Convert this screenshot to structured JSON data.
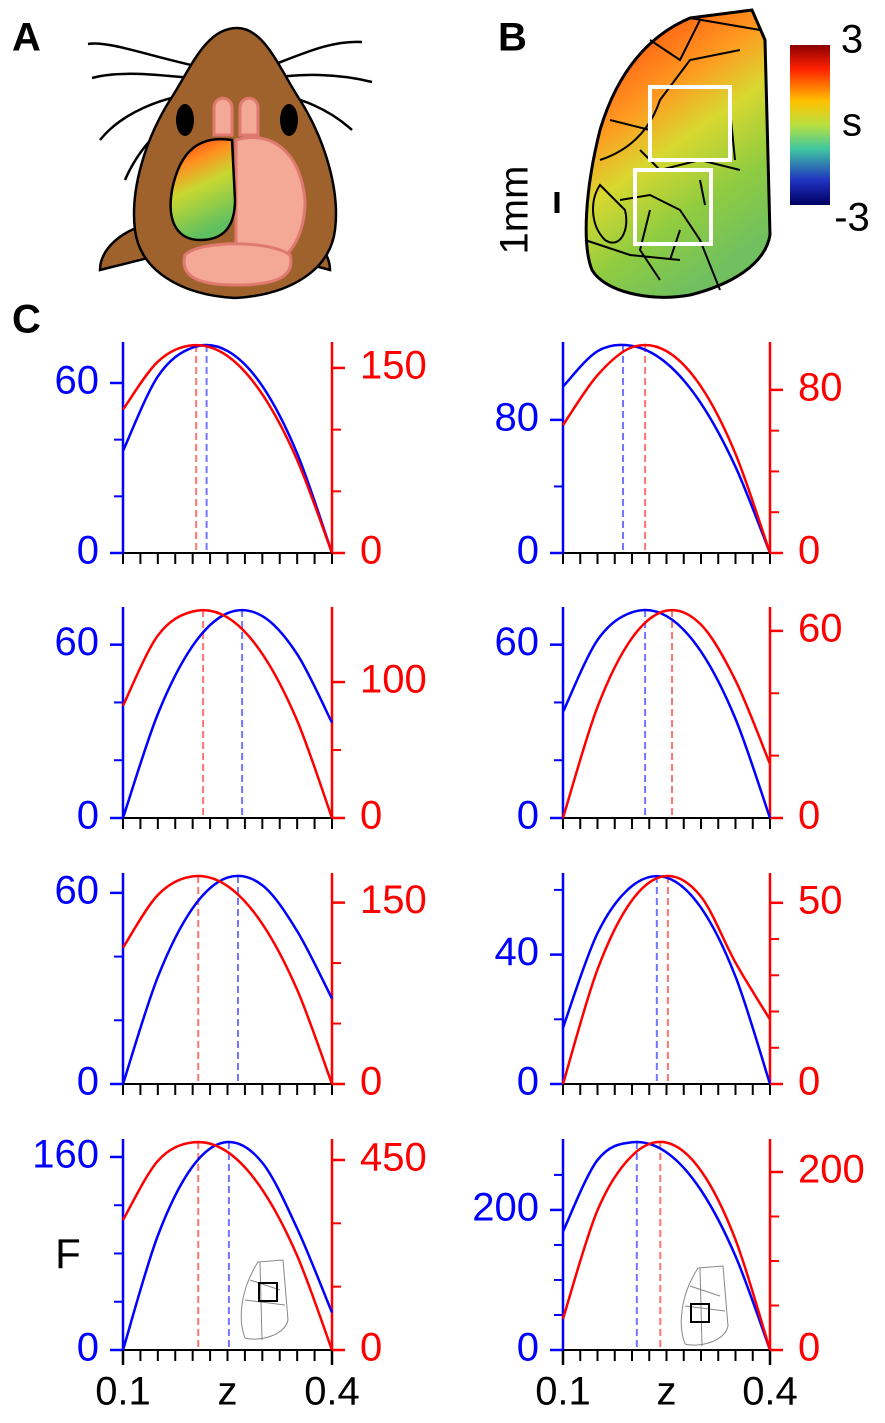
{
  "panel_labels": [
    "A",
    "B",
    "C"
  ],
  "colorbar": {
    "ticks": [
      3,
      -3
    ],
    "label": "s"
  },
  "scale_bar": "1mm",
  "inset_label": "F",
  "chart_data": [
    {
      "type": "line",
      "x": [
        0.1,
        0.15,
        0.2,
        0.25,
        0.3,
        0.35,
        0.4
      ],
      "xlim": [
        0.1,
        0.4
      ],
      "xminorticks": [
        0.1,
        0.125,
        0.15,
        0.175,
        0.2,
        0.225,
        0.25,
        0.275,
        0.3,
        0.325,
        0.35,
        0.375,
        0.4
      ],
      "ylim": [
        0,
        73.4
      ],
      "yticks": [
        0,
        60
      ],
      "yminorticks": [
        20,
        40
      ],
      "y2lim": [
        0,
        168.6
      ],
      "y2ticks": [
        0,
        150
      ],
      "y2minorticks": [
        50,
        100
      ],
      "series": [
        {
          "color": "#0000ff",
          "values": [
            36,
            62.3,
            72.5,
            71.3,
            58.9,
            35.1,
            0
          ],
          "peak_x": 0.22
        },
        {
          "color": "#ff0000",
          "axis": "y2",
          "values": [
            116.3,
            155.1,
            168.4,
            159.7,
            128.6,
            75.4,
            0
          ],
          "peak_x": 0.205
        }
      ]
    },
    {
      "type": "line",
      "x": [
        0.1,
        0.15,
        0.2,
        0.25,
        0.3,
        0.35,
        0.4
      ],
      "xlim": [
        0.1,
        0.4
      ],
      "xminorticks": [
        0.1,
        0.125,
        0.15,
        0.175,
        0.2,
        0.225,
        0.25,
        0.275,
        0.3,
        0.325,
        0.35,
        0.375,
        0.4
      ],
      "ylim": [
        0,
        125
      ],
      "yticks": [
        0,
        80
      ],
      "yminorticks": [
        40
      ],
      "y2lim": [
        0,
        102
      ],
      "y2ticks": [
        0,
        80
      ],
      "y2minorticks": [
        20,
        40,
        60
      ],
      "series": [
        {
          "color": "#0000ff",
          "values": [
            100,
            121.3,
            124.5,
            114.1,
            89.9,
            51.8,
            0
          ],
          "peak_x": 0.187
        },
        {
          "color": "#ff0000",
          "axis": "y2",
          "values": [
            62.7,
            87.2,
            100.9,
            99,
            81.6,
            48.6,
            0
          ],
          "peak_x": 0.219
        }
      ]
    },
    {
      "type": "line",
      "x": [
        0.1,
        0.15,
        0.2,
        0.25,
        0.3,
        0.35,
        0.4
      ],
      "xlim": [
        0.1,
        0.4
      ],
      "xminorticks": [
        0.1,
        0.125,
        0.15,
        0.175,
        0.2,
        0.225,
        0.25,
        0.275,
        0.3,
        0.325,
        0.35,
        0.375,
        0.4
      ],
      "ylim": [
        0,
        72
      ],
      "yticks": [
        0,
        60
      ],
      "yminorticks": [
        20,
        40
      ],
      "y2lim": [
        0,
        153
      ],
      "y2ticks": [
        0,
        100
      ],
      "y2minorticks": [
        50
      ],
      "series": [
        {
          "color": "#0000ff",
          "values": [
            0,
            36,
            59.6,
            70.9,
            69.9,
            56.7,
            33
          ],
          "peak_x": 0.271
        },
        {
          "color": "#ff0000",
          "axis": "y2",
          "values": [
            82.6,
            134.2,
            151.9,
            147.5,
            120.7,
            71.6,
            0
          ],
          "peak_x": 0.215
        }
      ]
    },
    {
      "type": "line",
      "x": [
        0.1,
        0.15,
        0.2,
        0.25,
        0.3,
        0.35,
        0.4
      ],
      "xlim": [
        0.1,
        0.4
      ],
      "xminorticks": [
        0.1,
        0.125,
        0.15,
        0.175,
        0.2,
        0.225,
        0.25,
        0.275,
        0.3,
        0.325,
        0.35,
        0.375,
        0.4
      ],
      "ylim": [
        0,
        72
      ],
      "yticks": [
        0,
        60
      ],
      "yminorticks": [
        20,
        40
      ],
      "y2lim": [
        0,
        66.7
      ],
      "y2ticks": [
        0,
        60
      ],
      "y2minorticks": [
        20,
        40
      ],
      "series": [
        {
          "color": "#0000ff",
          "values": [
            36.7,
            61.6,
            71.2,
            69.9,
            57.6,
            34.3,
            0
          ],
          "peak_x": 0.219
        },
        {
          "color": "#ff0000",
          "axis": "y2",
          "values": [
            0,
            35.6,
            57.7,
            66.5,
            62,
            44.1,
            17.3
          ],
          "peak_x": 0.258
        }
      ]
    },
    {
      "type": "line",
      "x": [
        0.1,
        0.15,
        0.2,
        0.25,
        0.3,
        0.35,
        0.4
      ],
      "xlim": [
        0.1,
        0.4
      ],
      "xminorticks": [
        0.1,
        0.125,
        0.15,
        0.175,
        0.2,
        0.225,
        0.25,
        0.275,
        0.3,
        0.325,
        0.35,
        0.375,
        0.4
      ],
      "ylim": [
        0,
        65.3
      ],
      "yticks": [
        0,
        60
      ],
      "yminorticks": [
        20,
        40
      ],
      "y2lim": [
        0,
        172
      ],
      "y2ticks": [
        0,
        150
      ],
      "y2minorticks": [
        50,
        100
      ],
      "series": [
        {
          "color": "#0000ff",
          "values": [
            0,
            33.6,
            55.2,
            64.8,
            62.4,
            48,
            26.8
          ],
          "peak_x": 0.265
        },
        {
          "color": "#ff0000",
          "axis": "y2",
          "values": [
            112.7,
            156.3,
            171.7,
            163.7,
            132.4,
            77.9,
            0
          ],
          "peak_x": 0.208
        }
      ]
    },
    {
      "type": "line",
      "x": [
        0.1,
        0.15,
        0.2,
        0.25,
        0.3,
        0.35,
        0.4
      ],
      "xlim": [
        0.1,
        0.4
      ],
      "xminorticks": [
        0.1,
        0.125,
        0.15,
        0.175,
        0.2,
        0.225,
        0.25,
        0.275,
        0.3,
        0.325,
        0.35,
        0.375,
        0.4
      ],
      "ylim": [
        0,
        64.3
      ],
      "yticks": [
        0,
        40
      ],
      "yminorticks": [
        20,
        60
      ],
      "y2lim": [
        0,
        57.4
      ],
      "y2ticks": [
        0,
        50
      ],
      "y2minorticks": [
        10,
        20,
        30,
        40
      ],
      "series": [
        {
          "color": "#0000ff",
          "values": [
            17.4,
            46.6,
            61.2,
            63.8,
            54.5,
            33.2,
            0
          ],
          "peak_x": 0.236
        },
        {
          "color": "#ff0000",
          "axis": "y2",
          "values": [
            0,
            31.6,
            50.7,
            57.4,
            51.7,
            33.5,
            17.8
          ],
          "peak_x": 0.252
        }
      ]
    },
    {
      "type": "line",
      "x": [
        0.1,
        0.15,
        0.2,
        0.25,
        0.3,
        0.35,
        0.4
      ],
      "xlim": [
        0.1,
        0.4
      ],
      "xticks": [
        0.1,
        0.4
      ],
      "xlabel": "z",
      "xminorticks": [
        0.1,
        0.125,
        0.15,
        0.175,
        0.2,
        0.225,
        0.25,
        0.275,
        0.3,
        0.325,
        0.35,
        0.375,
        0.4
      ],
      "ylim": [
        0,
        172.4
      ],
      "yticks": [
        0,
        160
      ],
      "yminorticks": [
        40,
        80,
        120
      ],
      "y2lim": [
        0,
        492.6
      ],
      "y2ticks": [
        0,
        450
      ],
      "y2minorticks": [
        150,
        300
      ],
      "series": [
        {
          "color": "#0000ff",
          "values": [
            0,
            94.8,
            152.2,
            172.4,
            155.2,
            100.7,
            31
          ],
          "peak_x": 0.252
        },
        {
          "color": "#ff0000",
          "axis": "y2",
          "values": [
            307.9,
            447.8,
            491.6,
            469,
            379.3,
            223.1,
            0
          ],
          "peak_x": 0.208
        }
      ]
    },
    {
      "type": "line",
      "x": [
        0.1,
        0.15,
        0.2,
        0.25,
        0.3,
        0.35,
        0.4
      ],
      "xlim": [
        0.1,
        0.4
      ],
      "xticks": [
        0.1,
        0.4
      ],
      "xlabel": "z",
      "xminorticks": [
        0.1,
        0.125,
        0.15,
        0.175,
        0.2,
        0.225,
        0.25,
        0.275,
        0.3,
        0.325,
        0.35,
        0.375,
        0.4
      ],
      "ylim": [
        0,
        297
      ],
      "yticks": [
        0,
        200
      ],
      "yminorticks": [
        50,
        100,
        150,
        250
      ],
      "y2lim": [
        0,
        233.7
      ],
      "y2ticks": [
        0,
        200
      ],
      "y2minorticks": [
        50,
        100,
        150
      ],
      "series": [
        {
          "color": "#0000ff",
          "values": [
            169.3,
            271.2,
            296.7,
            282.2,
            228.1,
            134,
            0
          ],
          "peak_x": 0.207
        },
        {
          "color": "#ff0000",
          "axis": "y2",
          "values": [
            35.1,
            157,
            218.3,
            233,
            201.4,
            123.9,
            0
          ],
          "peak_x": 0.241
        }
      ]
    }
  ]
}
